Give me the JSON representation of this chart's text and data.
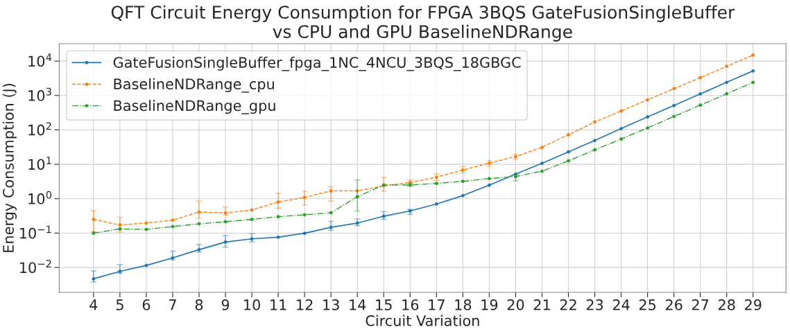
{
  "chart_data": {
    "type": "line",
    "title": "QFT Circuit Energy Consumption for FPGA 3BQS GateFusionSingleBuffer\nvs CPU and GPU BaselineNDRange",
    "xlabel": "Circuit Variation",
    "ylabel": "Energy Consumption (J)",
    "x": [
      4,
      5,
      6,
      7,
      8,
      9,
      10,
      11,
      12,
      13,
      14,
      15,
      16,
      17,
      18,
      19,
      20,
      21,
      22,
      23,
      24,
      25,
      26,
      27,
      28,
      29
    ],
    "series": [
      {
        "name": "GateFusionSingleBuffer_fpga_1NC_4NCU_3BQS_18GBGC",
        "color": "#1f77b4",
        "line_style": "solid",
        "values": [
          0.0047,
          0.0077,
          0.0115,
          0.019,
          0.033,
          0.055,
          0.068,
          0.076,
          0.099,
          0.147,
          0.196,
          0.31,
          0.44,
          0.7,
          1.23,
          2.48,
          5.2,
          10.7,
          23,
          49,
          109,
          238,
          510,
          1110,
          2410,
          5170
        ],
        "errors": [
          [
            0.0038,
            0.008
          ],
          [
            0.0068,
            0.012
          ],
          null,
          [
            0.0165,
            0.03
          ],
          [
            0.028,
            0.047
          ],
          [
            0.039,
            0.085
          ],
          [
            0.056,
            0.096
          ],
          null,
          null,
          [
            0.12,
            0.22
          ],
          [
            0.165,
            0.26
          ],
          [
            0.25,
            0.42
          ],
          [
            0.35,
            0.49
          ],
          null,
          null,
          null,
          null,
          null,
          null,
          null,
          null,
          null,
          null,
          null,
          null,
          null
        ]
      },
      {
        "name": "BaselineNDRange_cpu",
        "color": "#ff7f0e",
        "line_style": "dashed",
        "values": [
          0.25,
          0.172,
          0.196,
          0.238,
          0.41,
          0.385,
          0.47,
          0.8,
          1.09,
          1.69,
          1.69,
          2.38,
          2.96,
          4.2,
          6.8,
          10.8,
          16.7,
          31,
          72,
          170,
          353,
          747,
          1575,
          3280,
          7030,
          14900
        ],
        "errors": [
          [
            0.11,
            0.45
          ],
          [
            0.107,
            0.29
          ],
          null,
          null,
          [
            0.27,
            0.85
          ],
          [
            0.33,
            0.57
          ],
          null,
          [
            0.52,
            1.44
          ],
          [
            0.66,
            1.65
          ],
          [
            0.85,
            2.25
          ],
          null,
          [
            1.65,
            4.15
          ],
          [
            2.5,
            3.5
          ],
          [
            3.4,
            5.3
          ],
          [
            5.6,
            8.7
          ],
          [
            8.7,
            12.9
          ],
          [
            14,
            19.6
          ],
          null,
          null,
          null,
          null,
          null,
          null,
          null,
          null,
          null
        ]
      },
      {
        "name": "BaselineNDRange_gpu",
        "color": "#2ca02c",
        "line_style": "dashdot",
        "values": [
          0.1,
          0.132,
          0.128,
          0.155,
          0.186,
          0.214,
          0.25,
          0.3,
          0.34,
          0.39,
          1.14,
          2.5,
          2.5,
          2.79,
          3.19,
          3.86,
          4.4,
          6.3,
          12.6,
          26.3,
          54,
          114,
          245,
          525,
          1120,
          2410
        ],
        "errors": [
          null,
          null,
          null,
          null,
          null,
          null,
          null,
          null,
          null,
          null,
          [
            0.44,
            3.5
          ],
          null,
          [
            2.3,
            2.79
          ],
          null,
          null,
          null,
          [
            3.3,
            5.2
          ],
          null,
          null,
          null,
          null,
          null,
          null,
          null,
          null,
          null
        ]
      }
    ],
    "log": "y",
    "xlim": [
      2.7,
      30.25
    ],
    "ylim": [
      0.0019,
      32000
    ],
    "xticks": [
      4,
      5,
      6,
      7,
      8,
      9,
      10,
      11,
      12,
      13,
      14,
      15,
      16,
      17,
      18,
      19,
      20,
      21,
      22,
      23,
      24,
      25,
      26,
      27,
      28,
      29
    ],
    "yticks": [
      {
        "value": 0.01,
        "label": "10$^{−2}$"
      },
      {
        "value": 0.1,
        "label": "10$^{−1}$"
      },
      {
        "value": 1,
        "label": "10$^{0}$"
      },
      {
        "value": 10,
        "label": "10$^{1}$"
      },
      {
        "value": 100,
        "label": "10$^{2}$"
      },
      {
        "value": 1000,
        "label": "10$^{3}$"
      },
      {
        "value": 10000,
        "label": "10$^{4}$"
      }
    ],
    "grid": true,
    "legend": "top left",
    "marker": "circle"
  }
}
